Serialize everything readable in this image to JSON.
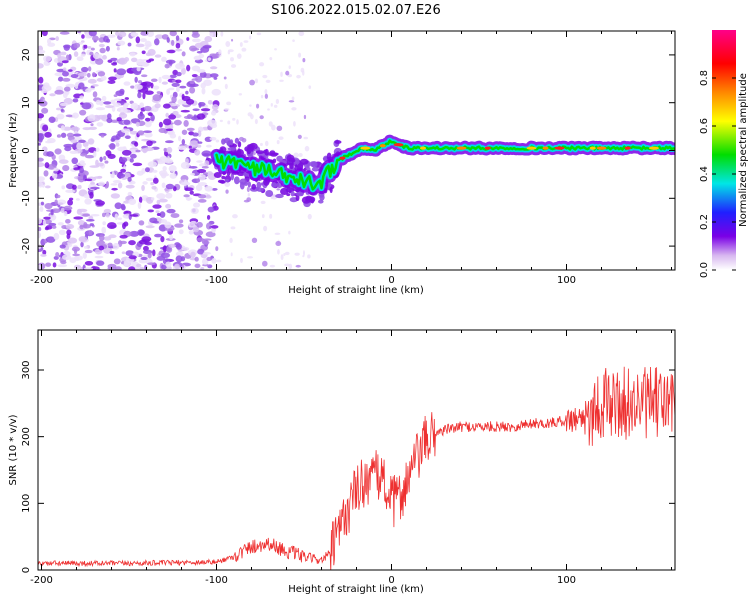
{
  "title": "S106.2022.015.02.07.E26",
  "chart_data": [
    {
      "type": "heatmap",
      "name": "spectrogram",
      "xlabel": "Height of straight line (km)",
      "ylabel": "Frequency (Hz)",
      "xlim": [
        -202,
        162
      ],
      "ylim": [
        -25,
        25
      ],
      "xticks": [
        -200,
        -100,
        0,
        100
      ],
      "yticks": [
        -20,
        -10,
        0,
        10,
        20
      ],
      "colorbar": {
        "label": "Normalized spectral amplitude",
        "range": [
          0,
          1
        ],
        "ticks": [
          "0.0",
          "0.2",
          "0.4",
          "0.6",
          "0.8"
        ],
        "stops": [
          "#ffffff",
          "#7a00e6",
          "#2020ff",
          "#00e6e6",
          "#00dd00",
          "#ffff00",
          "#ff8800",
          "#ff0000",
          "#ff00aa"
        ]
      },
      "ridge": {
        "x": [
          -100,
          -95,
          -90,
          -85,
          -80,
          -75,
          -70,
          -65,
          -60,
          -55,
          -50,
          -45,
          -40,
          -35,
          -30,
          -25,
          -20,
          -15,
          -10,
          -5,
          0,
          5,
          10,
          20,
          40,
          60,
          80,
          100,
          120,
          140,
          162
        ],
        "freq": [
          -2,
          -2.5,
          -2,
          -3,
          -3.5,
          -4,
          -4.5,
          -5,
          -5.5,
          -6,
          -6.5,
          -7,
          -6.5,
          -4,
          -2,
          -1,
          0,
          0.5,
          0,
          1,
          2,
          1,
          0.5,
          0.5,
          0.5,
          0.5,
          0.5,
          0.5,
          0.5,
          0.5,
          0.5
        ]
      }
    },
    {
      "type": "line",
      "name": "snr",
      "xlabel": "Height of straight line (km)",
      "ylabel": "SNR (10 * v/v)",
      "xlim": [
        -202,
        162
      ],
      "ylim": [
        0,
        360
      ],
      "xticks": [
        -200,
        -100,
        0,
        100
      ],
      "yticks": [
        0,
        100,
        200,
        300
      ],
      "color": "#ee3030",
      "trend": {
        "x": [
          -202,
          -150,
          -100,
          -90,
          -80,
          -70,
          -60,
          -50,
          -40,
          -35,
          -30,
          -25,
          -20,
          -15,
          -10,
          -5,
          0,
          5,
          10,
          15,
          20,
          25,
          30,
          40,
          50,
          60,
          70,
          80,
          90,
          100,
          110,
          115,
          120,
          130,
          140,
          150,
          162
        ],
        "y": [
          10,
          10,
          12,
          20,
          35,
          40,
          28,
          20,
          15,
          25,
          55,
          90,
          120,
          135,
          140,
          140,
          100,
          110,
          140,
          170,
          195,
          205,
          210,
          215,
          215,
          215,
          215,
          220,
          220,
          225,
          230,
          240,
          250,
          250,
          250,
          250,
          250
        ]
      }
    }
  ]
}
